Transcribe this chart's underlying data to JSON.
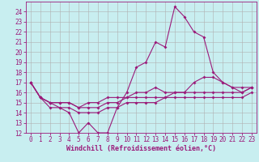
{
  "xlabel": "Windchill (Refroidissement éolien,°C)",
  "x_values": [
    0,
    1,
    2,
    3,
    4,
    5,
    6,
    7,
    8,
    9,
    10,
    11,
    12,
    13,
    14,
    15,
    16,
    17,
    18,
    19,
    20,
    21,
    22,
    23
  ],
  "line1": [
    17,
    15.5,
    15,
    14.5,
    14,
    12,
    13,
    12,
    12,
    14.5,
    16,
    18.5,
    19,
    21,
    20.5,
    24.5,
    23.5,
    22,
    21.5,
    18,
    17,
    16.5,
    16,
    16.5
  ],
  "line2": [
    17,
    15.5,
    15,
    15,
    15,
    14.5,
    15,
    15,
    15.5,
    15.5,
    15.5,
    16,
    16,
    16.5,
    16,
    16,
    16,
    17,
    17.5,
    17.5,
    17,
    16.5,
    16.5,
    16.5
  ],
  "line3": [
    17,
    15.5,
    15,
    15,
    15,
    14.5,
    14.5,
    14.5,
    15,
    15,
    15.5,
    15.5,
    15.5,
    15.5,
    15.5,
    16,
    16,
    16,
    16,
    16,
    16,
    16,
    16,
    16.5
  ],
  "line4": [
    17,
    15.5,
    14.5,
    14.5,
    14.5,
    14,
    14,
    14,
    14.5,
    14.5,
    15,
    15,
    15,
    15,
    15.5,
    15.5,
    15.5,
    15.5,
    15.5,
    15.5,
    15.5,
    15.5,
    15.5,
    16
  ],
  "line_color": "#9b1a7a",
  "bg_color": "#c8eef0",
  "grid_color": "#b0b0b0",
  "xlim": [
    -0.5,
    23.5
  ],
  "ylim": [
    12,
    25
  ],
  "yticks": [
    12,
    13,
    14,
    15,
    16,
    17,
    18,
    19,
    20,
    21,
    22,
    23,
    24
  ],
  "xticks": [
    0,
    1,
    2,
    3,
    4,
    5,
    6,
    7,
    8,
    9,
    10,
    11,
    12,
    13,
    14,
    15,
    16,
    17,
    18,
    19,
    20,
    21,
    22,
    23
  ],
  "markersize": 2.0,
  "linewidth": 0.8,
  "tick_fontsize": 5.5,
  "xlabel_fontsize": 6.0
}
